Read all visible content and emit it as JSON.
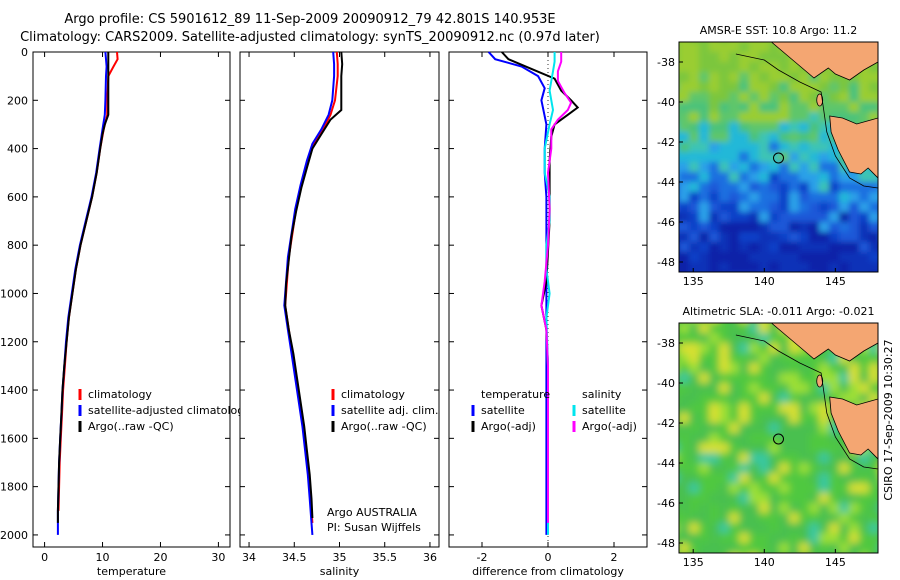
{
  "title_line1": "Argo profile: CS 5901612_89 11-Sep-2009 20090912_79 42.801S 140.953E",
  "title_line2": "Climatology: CARS2009. Satellite-adjusted climatology: synTS_20090912.nc (0.97d later)",
  "side_text": "CSIRO 17-Sep-2009 10:30:27",
  "colors": {
    "climatology": "#ff0000",
    "satellite": "#0000ff",
    "argo": "#000000",
    "sat_diff_s": "#00e5ee",
    "argo_diff_s": "#ff00ff",
    "land": "#f4a672"
  },
  "chart_data": [
    {
      "type": "line",
      "xlabel": "temperature",
      "xlim": [
        -2,
        32
      ],
      "ylim": [
        2050,
        0
      ],
      "xticks": [
        "0",
        "10",
        "20",
        "30"
      ],
      "yticks": [
        "0",
        "200",
        "400",
        "600",
        "800",
        "1000",
        "1200",
        "1400",
        "1600",
        "1800",
        "2000"
      ],
      "legend": [
        "climatology",
        "satellite-adjusted climatology",
        "Argo(..raw -QC)"
      ],
      "series": [
        {
          "name": "climatology",
          "color": "red",
          "points": [
            [
              12.5,
              0
            ],
            [
              12.6,
              30
            ],
            [
              11.9,
              60
            ],
            [
              11.0,
              100
            ],
            [
              10.8,
              200
            ],
            [
              10.8,
              260
            ],
            [
              10.2,
              320
            ],
            [
              9.6,
              400
            ],
            [
              9.0,
              500
            ],
            [
              8.2,
              600
            ],
            [
              7.2,
              700
            ],
            [
              6.2,
              800
            ],
            [
              5.4,
              900
            ],
            [
              4.8,
              1000
            ],
            [
              4.2,
              1100
            ],
            [
              3.8,
              1200
            ],
            [
              3.5,
              1300
            ],
            [
              3.2,
              1400
            ],
            [
              3.0,
              1500
            ],
            [
              2.8,
              1600
            ],
            [
              2.6,
              1700
            ],
            [
              2.5,
              1800
            ],
            [
              2.4,
              1900
            ]
          ]
        },
        {
          "name": "satellite-adjusted climatology",
          "color": "blue",
          "points": [
            [
              10.5,
              0
            ],
            [
              10.6,
              30
            ],
            [
              10.7,
              60
            ],
            [
              10.6,
              100
            ],
            [
              10.5,
              200
            ],
            [
              10.4,
              260
            ],
            [
              10.0,
              320
            ],
            [
              9.5,
              400
            ],
            [
              8.9,
              500
            ],
            [
              8.1,
              600
            ],
            [
              7.1,
              700
            ],
            [
              6.1,
              800
            ],
            [
              5.3,
              900
            ],
            [
              4.7,
              1000
            ],
            [
              4.1,
              1100
            ],
            [
              3.7,
              1200
            ],
            [
              3.4,
              1300
            ],
            [
              3.1,
              1400
            ],
            [
              2.9,
              1500
            ],
            [
              2.7,
              1600
            ],
            [
              2.5,
              1700
            ],
            [
              2.4,
              1800
            ],
            [
              2.3,
              1900
            ],
            [
              2.3,
              2000
            ]
          ]
        },
        {
          "name": "Argo(..raw -QC)",
          "color": "black",
          "points": [
            [
              11.0,
              0
            ],
            [
              11.0,
              50
            ],
            [
              11.0,
              100
            ],
            [
              11.0,
              150
            ],
            [
              11.0,
              200
            ],
            [
              11.0,
              260
            ],
            [
              10.4,
              300
            ],
            [
              10.0,
              340
            ],
            [
              9.6,
              400
            ],
            [
              9.0,
              500
            ],
            [
              8.2,
              600
            ],
            [
              7.2,
              700
            ],
            [
              6.2,
              800
            ],
            [
              5.4,
              900
            ],
            [
              4.8,
              1000
            ],
            [
              4.2,
              1100
            ],
            [
              3.8,
              1200
            ],
            [
              3.4,
              1300
            ],
            [
              3.1,
              1400
            ],
            [
              2.9,
              1500
            ],
            [
              2.7,
              1600
            ],
            [
              2.5,
              1700
            ],
            [
              2.4,
              1800
            ],
            [
              2.3,
              1900
            ],
            [
              2.3,
              1950
            ]
          ]
        }
      ]
    },
    {
      "type": "line",
      "xlabel": "salinity",
      "xlim": [
        33.9,
        36.1
      ],
      "ylim": [
        2050,
        0
      ],
      "xticks": [
        "34",
        "34.5",
        "35",
        "35.5",
        "36"
      ],
      "legend": [
        "climatology",
        "satellite adj. clim.",
        "Argo(..raw -QC)"
      ],
      "annotations": [
        "Argo AUSTRALIA",
        "PI: Susan Wijffels"
      ],
      "series": [
        {
          "name": "climatology",
          "color": "red",
          "points": [
            [
              34.97,
              0
            ],
            [
              34.98,
              50
            ],
            [
              34.98,
              100
            ],
            [
              34.95,
              200
            ],
            [
              34.9,
              260
            ],
            [
              34.82,
              320
            ],
            [
              34.72,
              380
            ],
            [
              34.65,
              450
            ],
            [
              34.58,
              550
            ],
            [
              34.52,
              650
            ],
            [
              34.48,
              750
            ],
            [
              34.44,
              850
            ],
            [
              34.42,
              950
            ],
            [
              34.4,
              1050
            ],
            [
              34.44,
              1150
            ],
            [
              34.48,
              1250
            ],
            [
              34.52,
              1350
            ],
            [
              34.56,
              1450
            ],
            [
              34.6,
              1550
            ],
            [
              34.63,
              1650
            ],
            [
              34.66,
              1750
            ],
            [
              34.68,
              1850
            ],
            [
              34.7,
              1950
            ]
          ]
        },
        {
          "name": "satellite adj. clim.",
          "color": "blue",
          "points": [
            [
              34.93,
              0
            ],
            [
              34.94,
              50
            ],
            [
              34.94,
              100
            ],
            [
              34.92,
              200
            ],
            [
              34.88,
              260
            ],
            [
              34.8,
              320
            ],
            [
              34.7,
              380
            ],
            [
              34.64,
              450
            ],
            [
              34.57,
              550
            ],
            [
              34.51,
              650
            ],
            [
              34.47,
              750
            ],
            [
              34.43,
              850
            ],
            [
              34.41,
              950
            ],
            [
              34.39,
              1050
            ],
            [
              34.43,
              1150
            ],
            [
              34.47,
              1250
            ],
            [
              34.51,
              1350
            ],
            [
              34.55,
              1450
            ],
            [
              34.59,
              1550
            ],
            [
              34.62,
              1650
            ],
            [
              34.65,
              1750
            ],
            [
              34.67,
              1850
            ],
            [
              34.69,
              1950
            ],
            [
              34.7,
              2000
            ]
          ]
        },
        {
          "name": "Argo(..raw -QC)",
          "color": "black",
          "points": [
            [
              35.02,
              0
            ],
            [
              35.03,
              50
            ],
            [
              35.02,
              100
            ],
            [
              35.02,
              150
            ],
            [
              35.02,
              240
            ],
            [
              34.9,
              280
            ],
            [
              34.8,
              340
            ],
            [
              34.7,
              400
            ],
            [
              34.64,
              480
            ],
            [
              34.58,
              560
            ],
            [
              34.52,
              660
            ],
            [
              34.47,
              760
            ],
            [
              34.44,
              860
            ],
            [
              34.41,
              960
            ],
            [
              34.4,
              1050
            ],
            [
              34.44,
              1150
            ],
            [
              34.49,
              1250
            ],
            [
              34.53,
              1350
            ],
            [
              34.57,
              1450
            ],
            [
              34.61,
              1550
            ],
            [
              34.64,
              1650
            ],
            [
              34.67,
              1750
            ],
            [
              34.69,
              1850
            ],
            [
              34.7,
              1930
            ]
          ]
        }
      ]
    },
    {
      "type": "line",
      "xlabel": "difference from climatology",
      "xlim": [
        -3,
        3
      ],
      "ylim": [
        2050,
        0
      ],
      "xticks": [
        "-2",
        "0",
        "2"
      ],
      "legend_temperature": [
        "temperature",
        "satellite",
        "Argo(-adj)"
      ],
      "legend_salinity": [
        "salinity",
        "satellite",
        "Argo(-adj)"
      ],
      "series": [
        {
          "name": "satellite",
          "color": "blue",
          "points": [
            [
              -1.8,
              0
            ],
            [
              -1.6,
              30
            ],
            [
              -0.8,
              60
            ],
            [
              -0.3,
              100
            ],
            [
              -0.1,
              150
            ],
            [
              -0.2,
              200
            ],
            [
              -0.05,
              300
            ],
            [
              -0.1,
              400
            ],
            [
              -0.1,
              500
            ],
            [
              -0.05,
              600
            ],
            [
              -0.05,
              800
            ],
            [
              -0.05,
              1000
            ],
            [
              -0.05,
              1200
            ],
            [
              -0.05,
              1500
            ],
            [
              -0.05,
              1800
            ],
            [
              -0.05,
              2000
            ]
          ]
        },
        {
          "name": "Argo(-adj)",
          "color": "black",
          "points": [
            [
              -1.4,
              0
            ],
            [
              -1.2,
              30
            ],
            [
              -0.5,
              70
            ],
            [
              0.2,
              110
            ],
            [
              0.4,
              160
            ],
            [
              0.7,
              200
            ],
            [
              0.9,
              230
            ],
            [
              0.6,
              260
            ],
            [
              0.2,
              300
            ],
            [
              0.1,
              350
            ],
            [
              0.05,
              450
            ],
            [
              0.05,
              700
            ],
            [
              -0.05,
              950
            ],
            [
              -0.2,
              1050
            ],
            [
              -0.05,
              1150
            ],
            [
              0.0,
              1300
            ],
            [
              0.0,
              1600
            ],
            [
              0.0,
              1900
            ],
            [
              0.0,
              1950
            ]
          ]
        },
        {
          "name": "satellite",
          "color": "cyan",
          "points": [
            [
              0.2,
              0
            ],
            [
              0.2,
              40
            ],
            [
              0.15,
              80
            ],
            [
              0.1,
              120
            ],
            [
              0.05,
              160
            ],
            [
              0.1,
              200
            ],
            [
              0.15,
              240
            ],
            [
              0.05,
              300
            ],
            [
              -0.1,
              400
            ],
            [
              -0.1,
              500
            ],
            [
              0.05,
              600
            ],
            [
              0.05,
              700
            ],
            [
              -0.05,
              800
            ],
            [
              -0.05,
              900
            ],
            [
              0.05,
              1000
            ],
            [
              -0.05,
              1100
            ],
            [
              0.0,
              1300
            ],
            [
              0.0,
              1600
            ],
            [
              0.0,
              1900
            ],
            [
              0.0,
              2000
            ]
          ]
        },
        {
          "name": "Argo(-adj)",
          "color": "magenta",
          "points": [
            [
              0.4,
              0
            ],
            [
              0.4,
              40
            ],
            [
              0.3,
              80
            ],
            [
              0.3,
              120
            ],
            [
              0.5,
              170
            ],
            [
              0.7,
              210
            ],
            [
              0.6,
              240
            ],
            [
              0.3,
              280
            ],
            [
              0.1,
              320
            ],
            [
              0.1,
              400
            ],
            [
              0.0,
              500
            ],
            [
              0.05,
              650
            ],
            [
              0.0,
              800
            ],
            [
              -0.1,
              950
            ],
            [
              -0.2,
              1050
            ],
            [
              -0.05,
              1150
            ],
            [
              0.0,
              1300
            ],
            [
              0.0,
              1600
            ],
            [
              0.0,
              1900
            ],
            [
              0.0,
              1950
            ]
          ]
        }
      ]
    },
    {
      "type": "heatmap",
      "title": "AMSR-E SST: 10.8 Argo: 11.2",
      "xlim": [
        134,
        148
      ],
      "ylim": [
        -48.5,
        -37
      ],
      "xticks": [
        "135",
        "140",
        "145"
      ],
      "yticks": [
        "-38",
        "-40",
        "-42",
        "-44",
        "-46",
        "-48"
      ],
      "marker": [
        141,
        -42.8
      ]
    },
    {
      "type": "heatmap",
      "title": "Altimetric SLA: -0.011 Argo: -0.021",
      "xlim": [
        134,
        148
      ],
      "ylim": [
        -48.5,
        -37
      ],
      "xticks": [
        "135",
        "140",
        "145"
      ],
      "yticks": [
        "-38",
        "-40",
        "-42",
        "-44",
        "-46",
        "-48"
      ],
      "marker": [
        141,
        -42.8
      ]
    }
  ]
}
